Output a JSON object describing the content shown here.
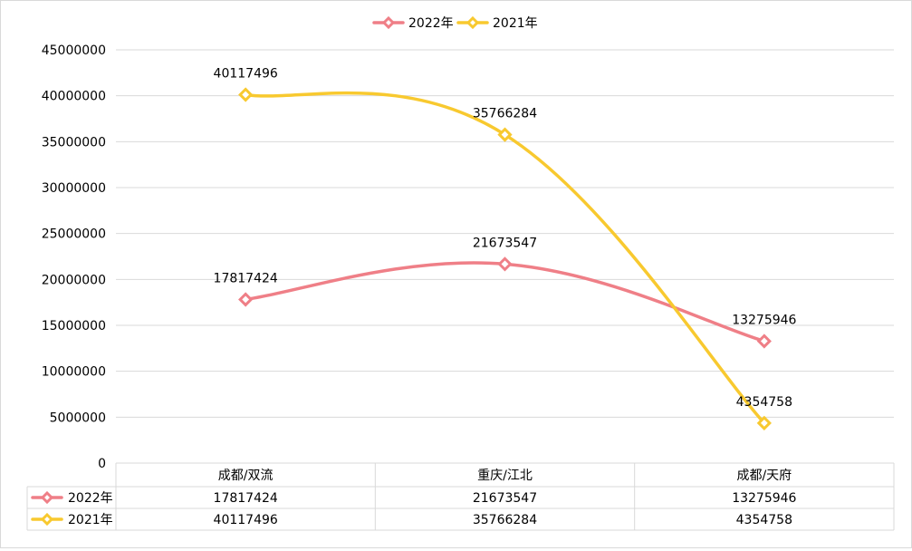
{
  "chart_data": {
    "type": "line",
    "categories": [
      "成都/双流",
      "重庆/江北",
      "成都/天府"
    ],
    "series": [
      {
        "name": "2022年",
        "values": [
          17817424,
          21673547,
          13275946
        ],
        "color": "#EF7F87"
      },
      {
        "name": "2021年",
        "values": [
          40117496,
          35766284,
          4354758
        ],
        "color": "#F8C92F"
      }
    ],
    "y_ticks": [
      "0",
      "5000000",
      "10000000",
      "15000000",
      "20000000",
      "25000000",
      "30000000",
      "35000000",
      "40000000",
      "45000000"
    ],
    "ylim": [
      0,
      45000000
    ],
    "smooth": true,
    "marker": "diamond",
    "legend_position": "top",
    "grid": true,
    "data_labels": [
      [
        "17817424",
        "21673547",
        "13275946"
      ],
      [
        "40117496",
        "35766284",
        "4354758"
      ]
    ],
    "data_table": true
  }
}
